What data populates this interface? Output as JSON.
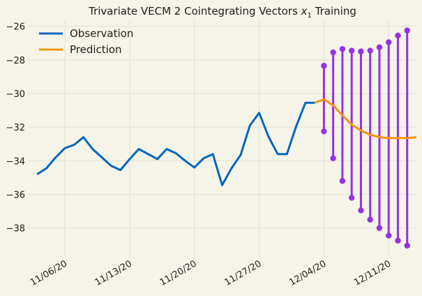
{
  "chart_data": {
    "type": "line",
    "title": "Trivariate VECM 2 Cointegrating Vectors x₁ Training",
    "title_main": "Trivariate VECM 2 Cointegrating Vectors ",
    "title_var": "x",
    "title_sub": "1",
    "title_tail": " Training",
    "xlabel": "",
    "ylabel": "",
    "x_range": [
      "2020-11-02",
      "2020-12-14"
    ],
    "ylim": [
      -39.8,
      -25.6
    ],
    "yticks": [
      -26,
      -28,
      -30,
      -32,
      -34,
      -36,
      -38
    ],
    "xticks": [
      "2020-11-06",
      "2020-11-13",
      "2020-11-20",
      "2020-11-27",
      "2020-12-04",
      "2020-12-11"
    ],
    "xtick_labels": [
      "11/06/20",
      "11/13/20",
      "11/20/20",
      "11/27/20",
      "12/04/20",
      "12/11/20"
    ],
    "grid": true,
    "legend": "upper-left",
    "colors": {
      "observation": "#0066c0",
      "prediction": "#f7940f",
      "interval": "#9332e8",
      "background": "#f6f4e9",
      "grid": "#e2e0d6"
    },
    "series": [
      {
        "name": "Observation",
        "x": [
          "2020-11-03",
          "2020-11-04",
          "2020-11-05",
          "2020-11-06",
          "2020-11-07",
          "2020-11-08",
          "2020-11-09",
          "2020-11-10",
          "2020-11-11",
          "2020-11-12",
          "2020-11-13",
          "2020-11-14",
          "2020-11-15",
          "2020-11-16",
          "2020-11-17",
          "2020-11-18",
          "2020-11-19",
          "2020-11-20",
          "2020-11-21",
          "2020-11-22",
          "2020-11-23",
          "2020-11-24",
          "2020-11-25",
          "2020-11-26",
          "2020-11-27",
          "2020-11-28",
          "2020-11-29",
          "2020-11-30",
          "2020-12-01",
          "2020-12-02",
          "2020-12-03"
        ],
        "values": [
          -34.8,
          -34.45,
          -33.8,
          -33.25,
          -33.05,
          -32.6,
          -33.3,
          -33.8,
          -34.3,
          -34.55,
          -33.9,
          -33.3,
          -33.6,
          -33.9,
          -33.3,
          -33.55,
          -34.0,
          -34.4,
          -33.85,
          -33.6,
          -35.45,
          -34.45,
          -33.65,
          -31.9,
          -31.15,
          -32.55,
          -33.6,
          -33.6,
          -31.95,
          -30.55,
          -30.55
        ]
      },
      {
        "name": "Prediction",
        "x": [
          "2020-12-03",
          "2020-12-04",
          "2020-12-05",
          "2020-12-06",
          "2020-12-07",
          "2020-12-08",
          "2020-12-09",
          "2020-12-10",
          "2020-12-11",
          "2020-12-12",
          "2020-12-13",
          "2020-12-14"
        ],
        "values": [
          -30.55,
          -30.35,
          -30.7,
          -31.3,
          -31.85,
          -32.2,
          -32.45,
          -32.6,
          -32.65,
          -32.65,
          -32.65,
          -32.6
        ]
      }
    ],
    "intervals": {
      "x": [
        "2020-12-04",
        "2020-12-05",
        "2020-12-06",
        "2020-12-07",
        "2020-12-08",
        "2020-12-09",
        "2020-12-10",
        "2020-12-11",
        "2020-12-12",
        "2020-12-13"
      ],
      "upper": [
        -28.35,
        -27.55,
        -27.35,
        -27.45,
        -27.5,
        -27.45,
        -27.25,
        -26.95,
        -26.55,
        -26.25
      ],
      "lower": [
        -32.25,
        -33.85,
        -35.2,
        -36.2,
        -36.95,
        -37.5,
        -38.0,
        -38.45,
        -38.75,
        -39.05
      ]
    }
  }
}
